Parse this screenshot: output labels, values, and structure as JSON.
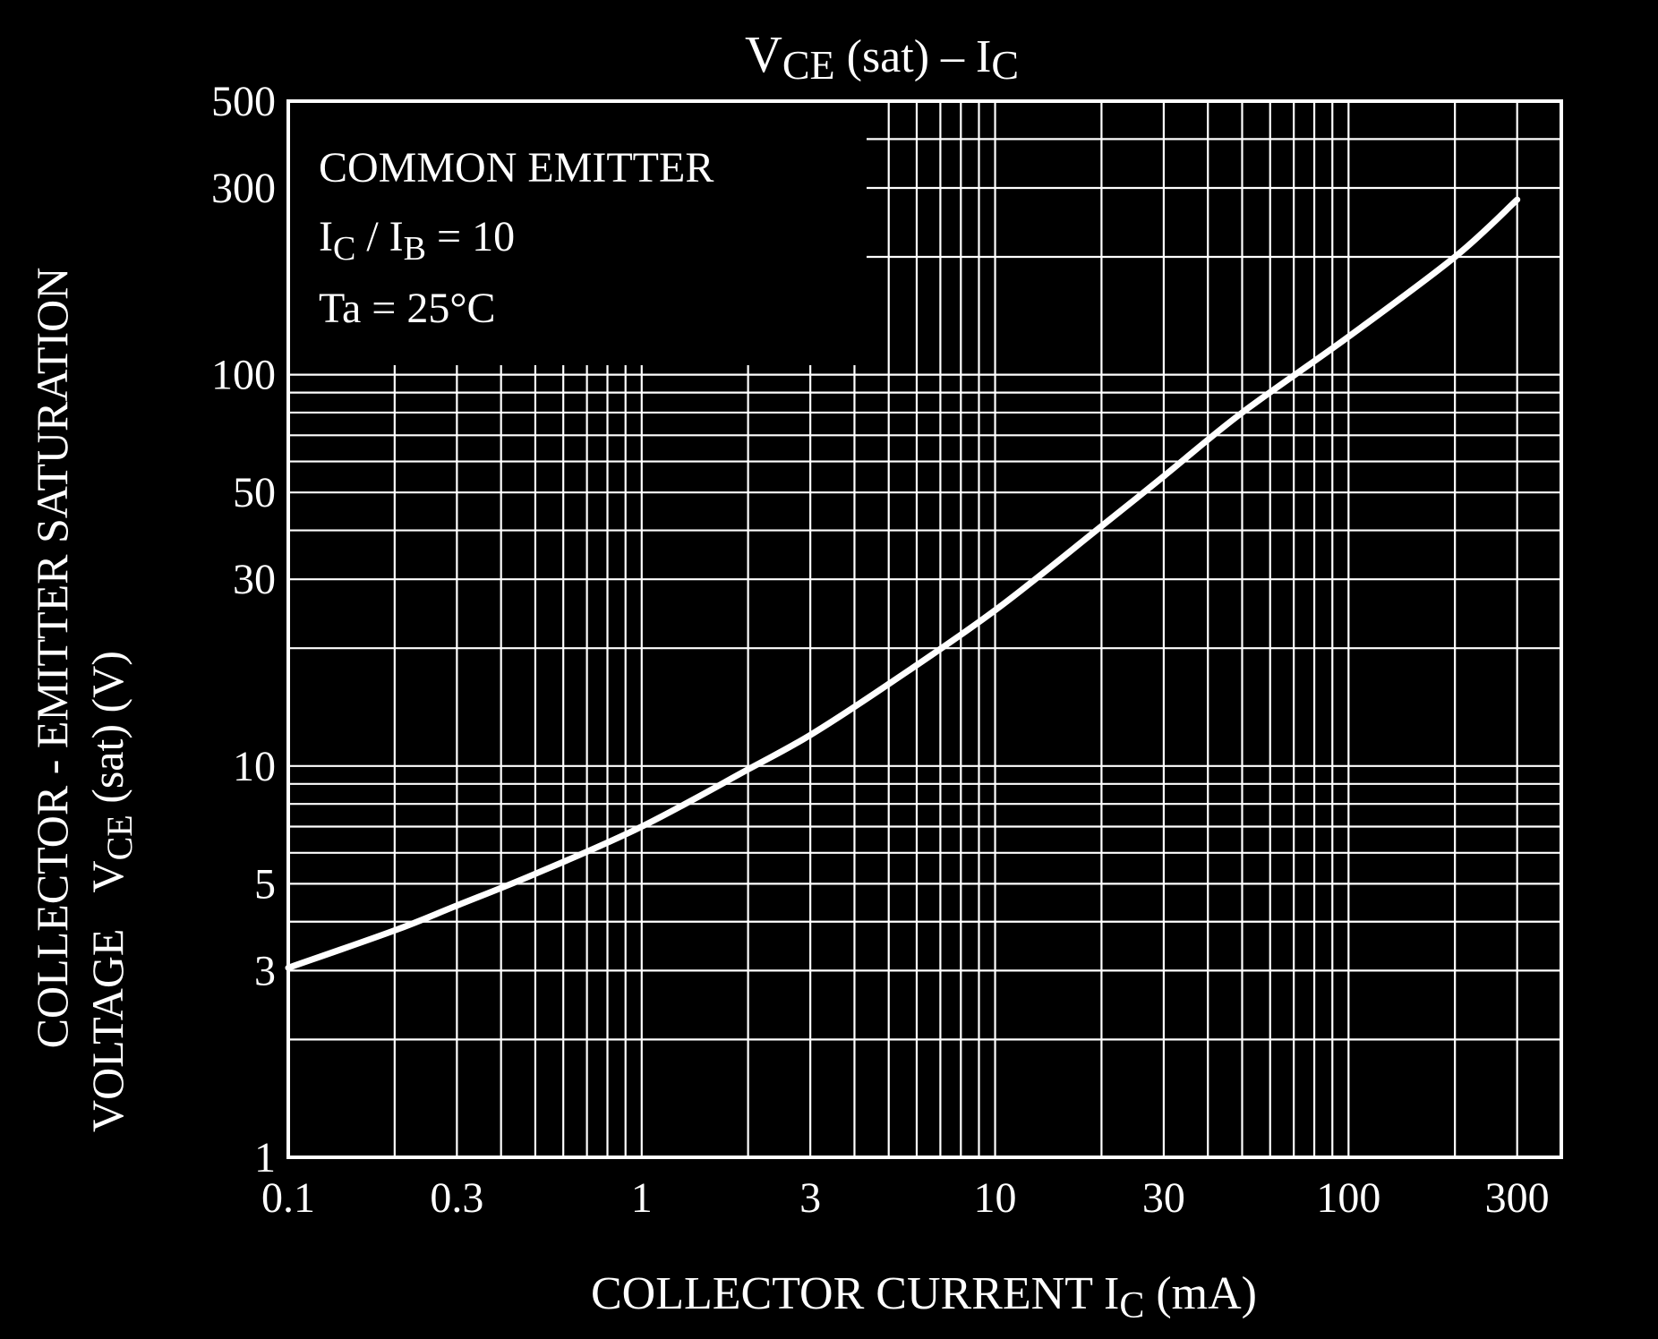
{
  "colors": {
    "background": "#000000",
    "foreground": "#ffffff"
  },
  "chart_data": {
    "type": "line",
    "title": {
      "main": "V",
      "sub": "CE",
      "rest": " (sat)  –  I",
      "sub2": "C"
    },
    "xlabel": {
      "pre": "COLLECTOR CURRENT   I",
      "sub": "C",
      "post": "   (mA)"
    },
    "ylabel": {
      "line1": "COLLECTOR - EMITTER SATURATION",
      "line2_a": "VOLTAGE",
      "line2_b": "V",
      "line2_sub": "CE",
      "line2_c": " (sat)     (V)"
    },
    "annotation": {
      "line1": "COMMON EMITTER",
      "line2": {
        "a": "I",
        "sub1": "C",
        "b": " / I",
        "sub2": "B",
        "c": " = 10"
      },
      "line3": "Ta = 25°C"
    },
    "x_scale": "log",
    "y_scale": "log",
    "xlim": [
      0.1,
      400
    ],
    "ylim": [
      1,
      500
    ],
    "x_ticks": [
      {
        "value": 0.1,
        "label": "0.1"
      },
      {
        "value": 0.3,
        "label": "0.3"
      },
      {
        "value": 1,
        "label": "1"
      },
      {
        "value": 3,
        "label": "3"
      },
      {
        "value": 10,
        "label": "10"
      },
      {
        "value": 30,
        "label": "30"
      },
      {
        "value": 100,
        "label": "100"
      },
      {
        "value": 300,
        "label": "300"
      }
    ],
    "y_ticks": [
      {
        "value": 1,
        "label": "1"
      },
      {
        "value": 3,
        "label": "3"
      },
      {
        "value": 5,
        "label": "5"
      },
      {
        "value": 10,
        "label": "10"
      },
      {
        "value": 30,
        "label": "30"
      },
      {
        "value": 50,
        "label": "50"
      },
      {
        "value": 100,
        "label": "100"
      },
      {
        "value": 300,
        "label": "300"
      },
      {
        "value": 500,
        "label": "500"
      }
    ],
    "grid": true,
    "series": [
      {
        "x": [
          0.1,
          0.2,
          0.3,
          0.5,
          1,
          2,
          3,
          5,
          10,
          20,
          30,
          50,
          100,
          200,
          300
        ],
        "y": [
          3.05,
          3.8,
          4.4,
          5.3,
          7.0,
          9.8,
          12.0,
          16.2,
          25,
          41,
          55,
          80,
          125,
          200,
          280
        ]
      }
    ]
  }
}
